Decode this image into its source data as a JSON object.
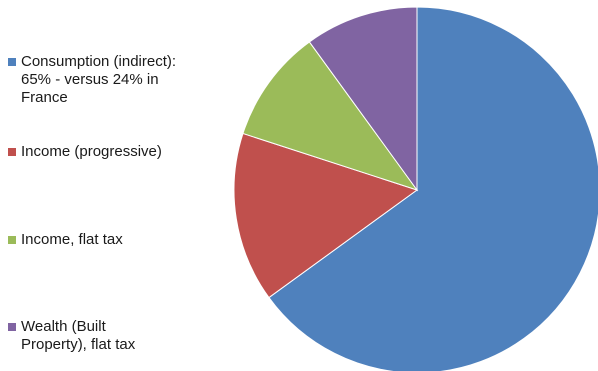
{
  "chart_data": {
    "type": "pie",
    "title": "",
    "categories": [
      "Consumption (indirect): 65% - versus 24% in France",
      "Income (progressive)",
      "Income, flat tax",
      "Wealth (Built Property), flat tax"
    ],
    "values": [
      65,
      15,
      10,
      10
    ],
    "colors": [
      "#4f81bd",
      "#c0504d",
      "#9bbb59",
      "#8064a2"
    ],
    "legend_position": "left",
    "start_angle_deg": 0,
    "direction": "clockwise"
  }
}
